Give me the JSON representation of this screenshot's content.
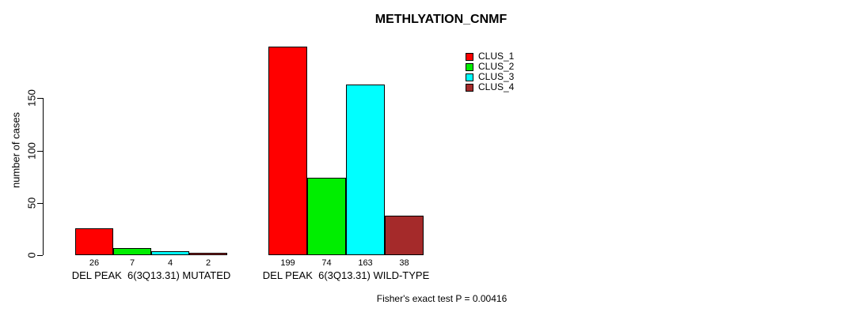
{
  "title": "METHLYATION_CNMF",
  "chart_data": {
    "type": "bar",
    "title": "METHLYATION_CNMF",
    "ylabel": "number of cases",
    "xlabel": "",
    "categories": [
      "DEL PEAK  6(3Q13.31) MUTATED",
      "DEL PEAK  6(3Q13.31) WILD-TYPE"
    ],
    "series": [
      {
        "name": "CLUS_1",
        "color": "#ff0000",
        "values": [
          26,
          199
        ]
      },
      {
        "name": "CLUS_2",
        "color": "#00ee00",
        "values": [
          7,
          74
        ]
      },
      {
        "name": "CLUS_3",
        "color": "#00ffff",
        "values": [
          4,
          163
        ]
      },
      {
        "name": "CLUS_4",
        "color": "#a52a2a",
        "values": [
          2,
          38
        ]
      }
    ],
    "value_labels_shown": true,
    "yticks": [
      0,
      50,
      100,
      150
    ],
    "ylim": [
      0,
      200
    ],
    "grid": false,
    "legend_position": "top-right",
    "annotation": "Fisher's exact test P = 0.00416"
  }
}
